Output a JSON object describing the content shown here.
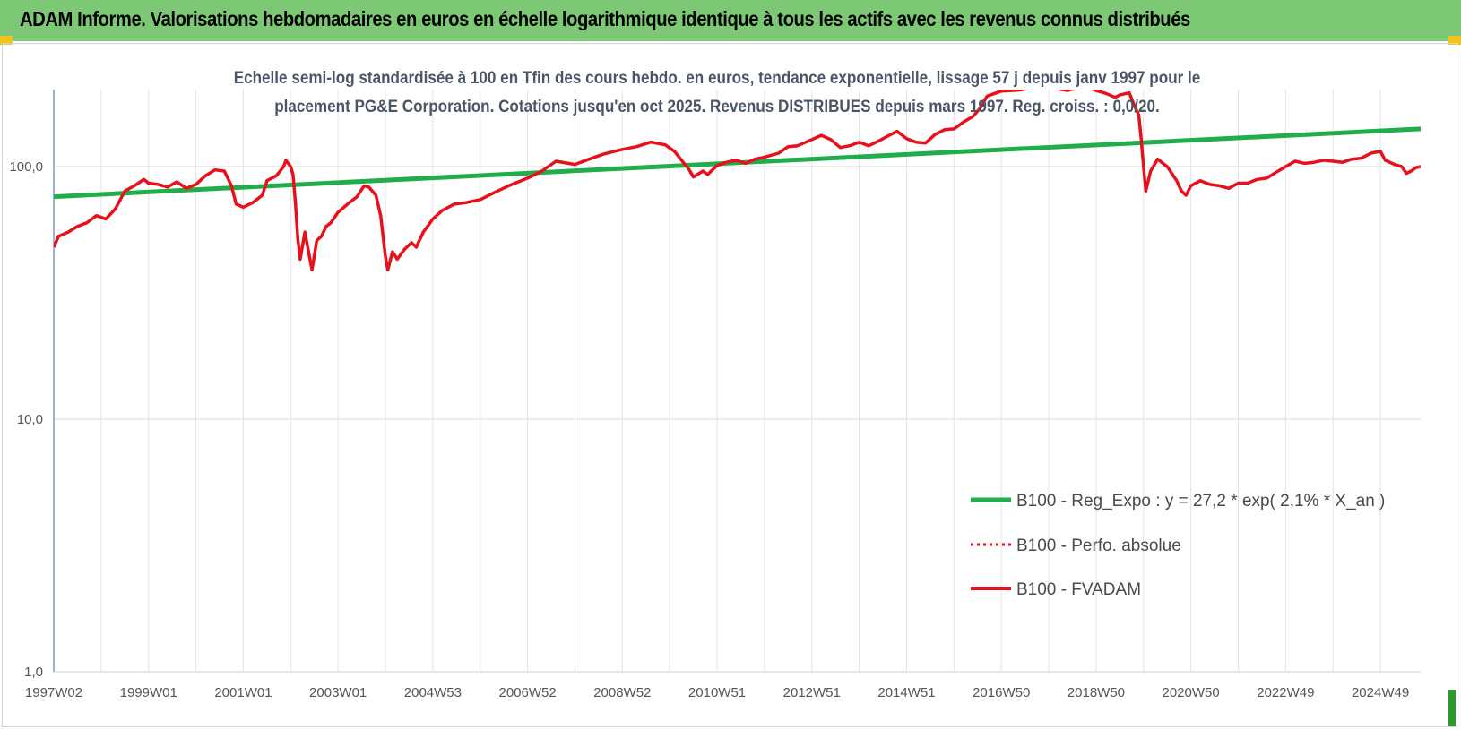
{
  "banner": {
    "title": "ADAM Informe. Valorisations hebdomadaires en euros en échelle logarithmique identique à tous les actifs avec les revenus connus distribués"
  },
  "colors": {
    "banner": "#7dc875",
    "trend": "#1fae4b",
    "fvadam": "#e8101b",
    "perfo": "#e8101b"
  },
  "chart_data": {
    "type": "line",
    "title_line1": "Echelle semi-log standardisée à 100 en Tfin des cours hebdo. en euros, tendance exponentielle, lissage 57 j depuis janv 1997 pour le",
    "title_line2": "placement PG&E Corporation. Cotations jusqu'en oct 2025. Revenus DISTRIBUES depuis mars 1997. Reg. croiss. : 0,0/20.",
    "y_scale": "log",
    "ylim": [
      1,
      200
    ],
    "y_ticks": [
      {
        "value": 1,
        "label": "1,0"
      },
      {
        "value": 10,
        "label": "10,0"
      },
      {
        "value": 100,
        "label": "100,0"
      }
    ],
    "xlim": [
      1997.0,
      2025.85
    ],
    "x_ticks": [
      {
        "value": 1997.0,
        "label": "1997W02"
      },
      {
        "value": 1999.0,
        "label": "1999W01"
      },
      {
        "value": 2001.0,
        "label": "2001W01"
      },
      {
        "value": 2003.0,
        "label": "2003W01"
      },
      {
        "value": 2005.0,
        "label": "2004W53"
      },
      {
        "value": 2007.0,
        "label": "2006W52"
      },
      {
        "value": 2009.0,
        "label": "2008W52"
      },
      {
        "value": 2011.0,
        "label": "2010W51"
      },
      {
        "value": 2013.0,
        "label": "2012W51"
      },
      {
        "value": 2015.0,
        "label": "2014W51"
      },
      {
        "value": 2017.0,
        "label": "2016W50"
      },
      {
        "value": 2019.0,
        "label": "2018W50"
      },
      {
        "value": 2021.0,
        "label": "2020W50"
      },
      {
        "value": 2023.0,
        "label": "2022W49"
      },
      {
        "value": 2025.0,
        "label": "2024W49"
      }
    ],
    "grid": true,
    "legend_position": "bottom-right",
    "series": [
      {
        "name": "B100 - Reg_Expo : y = 27,2 * exp( 2,1% *  X_an )",
        "style": "solid",
        "points": [
          [
            1997.0,
            76
          ],
          [
            2025.85,
            141
          ]
        ]
      },
      {
        "name": "B100 - Perfo. absolue",
        "style": "dotted",
        "points": []
      },
      {
        "name": "B100 - FVADAM",
        "style": "solid",
        "points": [
          [
            1997.0,
            48
          ],
          [
            1997.1,
            53
          ],
          [
            1997.3,
            55
          ],
          [
            1997.5,
            58
          ],
          [
            1997.7,
            60
          ],
          [
            1997.9,
            64
          ],
          [
            1998.1,
            62
          ],
          [
            1998.3,
            68
          ],
          [
            1998.5,
            80
          ],
          [
            1998.7,
            84
          ],
          [
            1998.9,
            89
          ],
          [
            1999.0,
            86
          ],
          [
            1999.2,
            85
          ],
          [
            1999.4,
            83
          ],
          [
            1999.6,
            87
          ],
          [
            1999.8,
            82
          ],
          [
            2000.0,
            85
          ],
          [
            2000.2,
            92
          ],
          [
            2000.4,
            97
          ],
          [
            2000.6,
            96
          ],
          [
            2000.75,
            84
          ],
          [
            2000.85,
            71
          ],
          [
            2001.0,
            69
          ],
          [
            2001.2,
            72
          ],
          [
            2001.4,
            77
          ],
          [
            2001.5,
            88
          ],
          [
            2001.7,
            92
          ],
          [
            2001.85,
            100
          ],
          [
            2001.9,
            106
          ],
          [
            2002.0,
            100
          ],
          [
            2002.05,
            93
          ],
          [
            2002.1,
            72
          ],
          [
            2002.15,
            52
          ],
          [
            2002.2,
            43
          ],
          [
            2002.3,
            55
          ],
          [
            2002.35,
            49
          ],
          [
            2002.45,
            39
          ],
          [
            2002.55,
            51
          ],
          [
            2002.65,
            53
          ],
          [
            2002.75,
            58
          ],
          [
            2002.85,
            60
          ],
          [
            2003.0,
            66
          ],
          [
            2003.2,
            71
          ],
          [
            2003.4,
            76
          ],
          [
            2003.55,
            84
          ],
          [
            2003.65,
            83
          ],
          [
            2003.8,
            77
          ],
          [
            2003.9,
            64
          ],
          [
            2004.0,
            44
          ],
          [
            2004.05,
            39
          ],
          [
            2004.15,
            46
          ],
          [
            2004.25,
            43
          ],
          [
            2004.4,
            47
          ],
          [
            2004.55,
            50
          ],
          [
            2004.65,
            48
          ],
          [
            2004.8,
            55
          ],
          [
            2005.0,
            62
          ],
          [
            2005.2,
            67
          ],
          [
            2005.45,
            71
          ],
          [
            2005.7,
            72
          ],
          [
            2006.0,
            74
          ],
          [
            2006.3,
            79
          ],
          [
            2006.6,
            84
          ],
          [
            2007.0,
            90
          ],
          [
            2007.3,
            96
          ],
          [
            2007.6,
            105
          ],
          [
            2008.0,
            102
          ],
          [
            2008.3,
            107
          ],
          [
            2008.6,
            112
          ],
          [
            2009.0,
            117
          ],
          [
            2009.3,
            120
          ],
          [
            2009.6,
            125
          ],
          [
            2009.9,
            122
          ],
          [
            2010.1,
            115
          ],
          [
            2010.25,
            106
          ],
          [
            2010.4,
            98
          ],
          [
            2010.5,
            91
          ],
          [
            2010.7,
            96
          ],
          [
            2010.8,
            93
          ],
          [
            2011.0,
            101
          ],
          [
            2011.2,
            104
          ],
          [
            2011.4,
            106
          ],
          [
            2011.6,
            103
          ],
          [
            2011.8,
            107
          ],
          [
            2012.0,
            109
          ],
          [
            2012.3,
            113
          ],
          [
            2012.5,
            120
          ],
          [
            2012.7,
            121
          ],
          [
            2013.0,
            128
          ],
          [
            2013.2,
            133
          ],
          [
            2013.4,
            128
          ],
          [
            2013.6,
            119
          ],
          [
            2013.8,
            121
          ],
          [
            2014.0,
            125
          ],
          [
            2014.2,
            121
          ],
          [
            2014.4,
            126
          ],
          [
            2014.6,
            132
          ],
          [
            2014.8,
            138
          ],
          [
            2015.0,
            129
          ],
          [
            2015.2,
            125
          ],
          [
            2015.4,
            124
          ],
          [
            2015.6,
            134
          ],
          [
            2015.8,
            140
          ],
          [
            2016.0,
            141
          ],
          [
            2016.2,
            150
          ],
          [
            2016.4,
            158
          ],
          [
            2016.55,
            170
          ],
          [
            2016.7,
            190
          ],
          [
            2017.0,
            199
          ],
          [
            2017.2,
            200
          ],
          [
            2017.4,
            201
          ],
          [
            2017.6,
            205
          ],
          [
            2018.0,
            207
          ],
          [
            2018.2,
            203
          ],
          [
            2018.4,
            200
          ],
          [
            2018.6,
            205
          ],
          [
            2018.8,
            208
          ],
          [
            2019.0,
            200
          ],
          [
            2019.2,
            195
          ],
          [
            2019.4,
            188
          ],
          [
            2019.5,
            192
          ],
          [
            2019.7,
            196
          ],
          [
            2019.8,
            176
          ],
          [
            2019.9,
            160
          ],
          [
            2019.95,
            130
          ],
          [
            2020.0,
            100
          ],
          [
            2020.05,
            80
          ],
          [
            2020.15,
            96
          ],
          [
            2020.3,
            107
          ],
          [
            2020.5,
            100
          ],
          [
            2020.7,
            88
          ],
          [
            2020.8,
            80
          ],
          [
            2020.9,
            77
          ],
          [
            2021.0,
            84
          ],
          [
            2021.2,
            88
          ],
          [
            2021.4,
            85
          ],
          [
            2021.6,
            84
          ],
          [
            2021.8,
            82
          ],
          [
            2022.0,
            86
          ],
          [
            2022.2,
            86
          ],
          [
            2022.4,
            89
          ],
          [
            2022.6,
            90
          ],
          [
            2022.8,
            95
          ],
          [
            2023.0,
            100
          ],
          [
            2023.2,
            105
          ],
          [
            2023.4,
            103
          ],
          [
            2023.6,
            104
          ],
          [
            2023.8,
            106
          ],
          [
            2024.0,
            105
          ],
          [
            2024.2,
            104
          ],
          [
            2024.4,
            107
          ],
          [
            2024.6,
            108
          ],
          [
            2024.8,
            113
          ],
          [
            2025.0,
            115
          ],
          [
            2025.1,
            106
          ],
          [
            2025.3,
            102
          ],
          [
            2025.45,
            100
          ],
          [
            2025.55,
            94
          ],
          [
            2025.65,
            96
          ],
          [
            2025.75,
            99
          ],
          [
            2025.85,
            100
          ]
        ]
      }
    ]
  }
}
